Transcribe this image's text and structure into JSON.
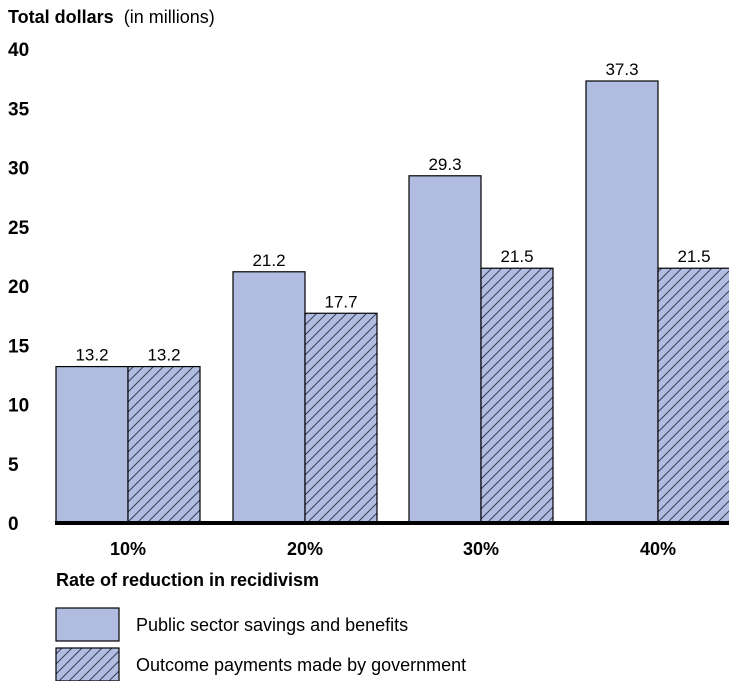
{
  "chart_data": {
    "type": "bar",
    "title": "",
    "ylabel_bold": "Total dollars",
    "ylabel_rest": "(in millions)",
    "xlabel": "Rate of reduction in recidivism",
    "categories": [
      "10%",
      "20%",
      "30%",
      "40%"
    ],
    "yticks": [
      "0",
      "5",
      "10",
      "15",
      "20",
      "25",
      "30",
      "35",
      "40"
    ],
    "ylim": [
      0,
      40
    ],
    "grid": false,
    "legend_position": "bottom-left",
    "series": [
      {
        "name": "Public sector savings and benefits",
        "values": [
          13.2,
          21.2,
          29.3,
          37.3
        ],
        "labels": [
          "13.2",
          "21.2",
          "29.3",
          "37.3"
        ],
        "color": "#b0bde0",
        "pattern": "solid"
      },
      {
        "name": "Outcome payments made by government",
        "values": [
          13.2,
          17.7,
          21.5,
          21.5
        ],
        "labels": [
          "13.2",
          "17.7",
          "21.5",
          "21.5"
        ],
        "color": "#b0bde0",
        "pattern": "hatched"
      }
    ]
  }
}
